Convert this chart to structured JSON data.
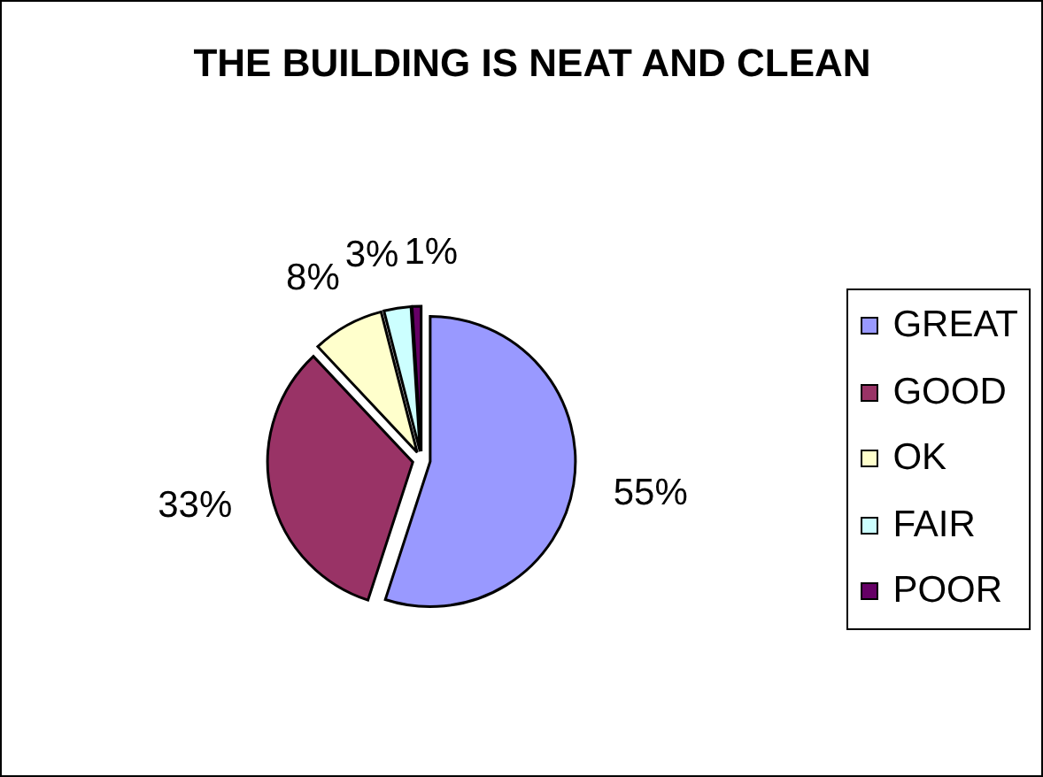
{
  "chart_data": {
    "type": "pie",
    "title": "THE BUILDING IS NEAT AND CLEAN",
    "categories": [
      "GREAT",
      "GOOD",
      "OK",
      "FAIR",
      "POOR"
    ],
    "values": [
      55,
      33,
      8,
      3,
      1
    ],
    "colors": [
      "#9999ff",
      "#993366",
      "#ffffcc",
      "#ccffff",
      "#660066"
    ],
    "value_labels": [
      "55%",
      "33%",
      "8%",
      "3%",
      "1%"
    ],
    "legend": "right"
  }
}
